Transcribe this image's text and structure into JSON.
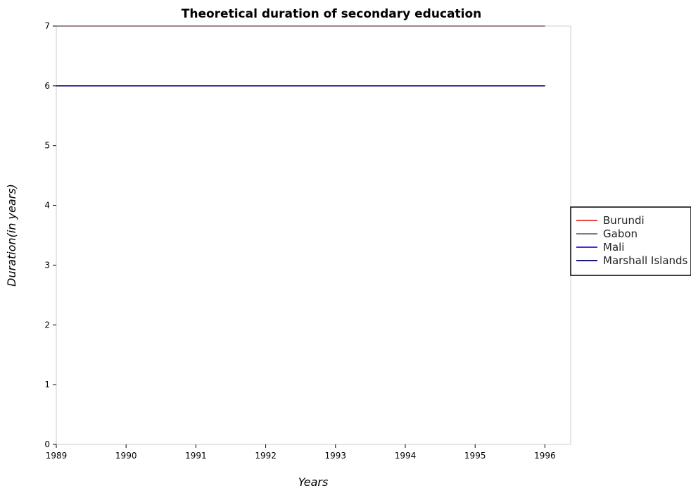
{
  "chart_data": {
    "type": "line",
    "title": "Theoretical duration of secondary education",
    "xlabel": "Years",
    "ylabel": "Duration(in years)",
    "categories": [
      "1989",
      "1990",
      "1991",
      "1992",
      "1993",
      "1994",
      "1995",
      "1996"
    ],
    "ylim": [
      0,
      7
    ],
    "yticks": [
      "0",
      "1",
      "2",
      "3",
      "4",
      "5",
      "6",
      "7"
    ],
    "grid": false,
    "legend_position": "right",
    "series": [
      {
        "name": "Burundi",
        "color": "#e8473f",
        "values": [
          7,
          7,
          7,
          7,
          7,
          7,
          7,
          7
        ]
      },
      {
        "name": "Gabon",
        "color": "#7f7f7f",
        "values": [
          7,
          7,
          7,
          7,
          7,
          7,
          7,
          7
        ]
      },
      {
        "name": "Mali",
        "color": "#3a2cf0",
        "values": [
          6,
          6,
          6,
          6,
          6,
          6,
          6,
          6
        ]
      },
      {
        "name": "Marshall Islands",
        "color": "#1a1a7a",
        "values": [
          6,
          6,
          6,
          6,
          6,
          6,
          6,
          6
        ]
      }
    ]
  }
}
